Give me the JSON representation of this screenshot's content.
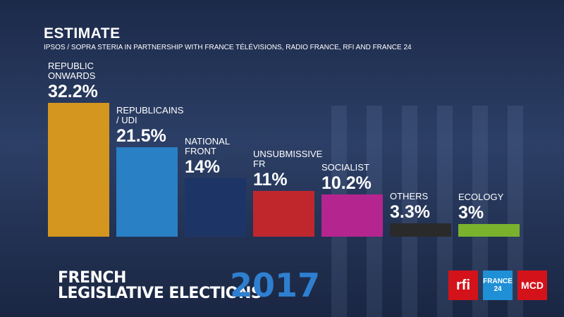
{
  "chart_data": {
    "type": "bar",
    "title": "ESTIMATE",
    "subtitle": "IPSOS / SOPRA STERIA IN PARTNERSHIP WITH FRANCE TÉLÉVISIONS, RADIO FRANCE, RFI AND FRANCE 24",
    "categories": [
      "REPUBLIC ONWARDS",
      "REPUBLICAINS / UDI",
      "NATIONAL FRONT",
      "UNSUBMISSIVE FR",
      "SOCIALIST",
      "OTHERS",
      "ECOLOGY"
    ],
    "values": [
      32.2,
      21.5,
      14,
      11,
      10.2,
      3.3,
      3
    ],
    "value_labels": [
      "32.2%",
      "21.5%",
      "14%",
      "11%",
      "10.2%",
      "3.3%",
      "3%"
    ],
    "colors": [
      "#d4961f",
      "#2a80c4",
      "#1d3566",
      "#c0272d",
      "#b5258f",
      "#2a2a2a",
      "#7ab22e"
    ]
  },
  "footer": {
    "line1": "FRENCH",
    "line2": "LEGISLATIVE ELECTIONS",
    "year": "2017",
    "logos": [
      "rfi",
      "FRANCE 24",
      "MCD"
    ]
  }
}
